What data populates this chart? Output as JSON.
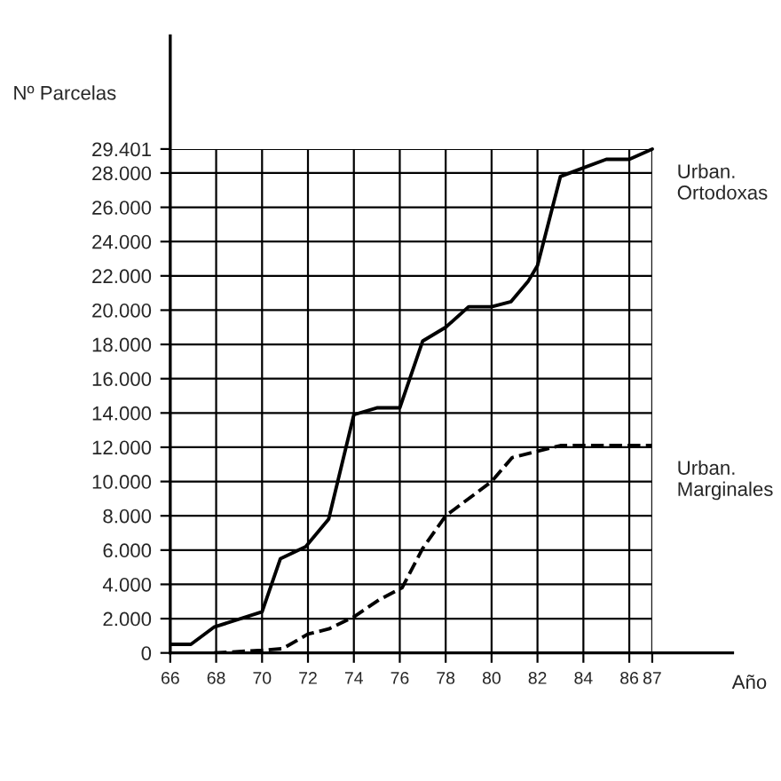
{
  "chart_data": {
    "type": "line",
    "xlabel": "Año",
    "ylabel": "Nº Parcelas",
    "xlim": [
      66,
      90.5
    ],
    "xticks": [
      66,
      68,
      70,
      72,
      74,
      76,
      78,
      80,
      82,
      84,
      86,
      87
    ],
    "ylim": [
      0,
      36000
    ],
    "yticks": [
      0,
      {
        "value": 2000,
        "label": "2.000"
      },
      {
        "value": 4000,
        "label": "4.000"
      },
      {
        "value": 6000,
        "label": "6.000"
      },
      {
        "value": 8000,
        "label": "8.000"
      },
      {
        "value": 10000,
        "label": "10.000"
      },
      {
        "value": 12000,
        "label": "12.000"
      },
      {
        "value": 14000,
        "label": "14.000"
      },
      {
        "value": 16000,
        "label": "16.000"
      },
      {
        "value": 18000,
        "label": "18.000"
      },
      {
        "value": 20000,
        "label": "20.000"
      },
      {
        "value": 22000,
        "label": "22.000"
      },
      {
        "value": 24000,
        "label": "24.000"
      },
      {
        "value": 26000,
        "label": "26.000"
      },
      {
        "value": 28000,
        "label": "28.000"
      },
      {
        "value": 29401,
        "label": "29.401"
      }
    ],
    "grid": true,
    "legend": false,
    "series": [
      {
        "name": "Urban. Ortodoxas",
        "color": "#000000",
        "line_style": "solid",
        "x": [
          66,
          66.9,
          67.9,
          70,
          70.8,
          71.9,
          72.9,
          74,
          75,
          76,
          77,
          78,
          79,
          80,
          80.85,
          81.6,
          82,
          83,
          84,
          85,
          86,
          87
        ],
        "values": [
          500,
          500,
          1500,
          2400,
          5500,
          6200,
          7800,
          13900,
          14300,
          14300,
          18200,
          19000,
          20200,
          20200,
          20500,
          21700,
          22600,
          27800,
          28300,
          28800,
          28800,
          29401
        ]
      },
      {
        "name": "Urban. Marginales",
        "color": "#000000",
        "line_style": "dashed",
        "x": [
          67.9,
          70,
          70.9,
          72,
          72.9,
          74,
          75.1,
          76.1,
          77,
          78,
          80,
          80.9,
          83,
          87
        ],
        "values": [
          0,
          150,
          250,
          1100,
          1400,
          2100,
          3100,
          3800,
          6100,
          8000,
          10000,
          11400,
          12100,
          12100
        ]
      }
    ]
  }
}
